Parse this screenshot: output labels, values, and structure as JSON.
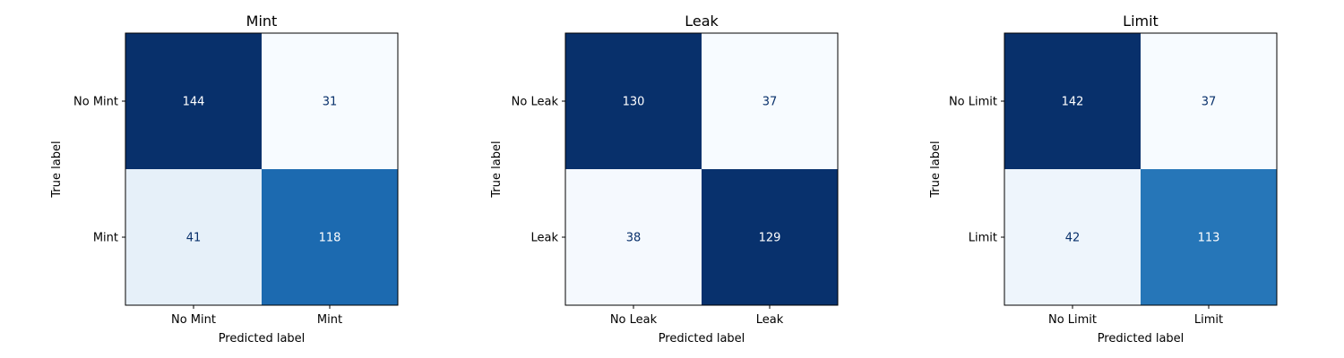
{
  "chart_data": [
    {
      "type": "heatmap",
      "title": "Mint",
      "xlabel": "Predicted label",
      "ylabel": "True label",
      "x_categories": [
        "No Mint",
        "Mint"
      ],
      "y_categories": [
        "No Mint",
        "Mint"
      ],
      "values": [
        [
          144,
          31
        ],
        [
          41,
          118
        ]
      ],
      "colormap": "Blues",
      "colors": [
        [
          "#08306b",
          "#f7fbff"
        ],
        [
          "#e6f0f9",
          "#1c6ab0"
        ]
      ]
    },
    {
      "type": "heatmap",
      "title": "Leak",
      "xlabel": "Predicted label",
      "ylabel": "True label",
      "x_categories": [
        "No Leak",
        "Leak"
      ],
      "y_categories": [
        "No Leak",
        "Leak"
      ],
      "values": [
        [
          130,
          37
        ],
        [
          38,
          129
        ]
      ],
      "colormap": "Blues",
      "colors": [
        [
          "#08306b",
          "#f7fbff"
        ],
        [
          "#f5f9fe",
          "#08316d"
        ]
      ]
    },
    {
      "type": "heatmap",
      "title": "Limit",
      "xlabel": "Predicted label",
      "ylabel": "True label",
      "x_categories": [
        "No Limit",
        "Limit"
      ],
      "y_categories": [
        "No Limit",
        "Limit"
      ],
      "values": [
        [
          142,
          37
        ],
        [
          42,
          113
        ]
      ],
      "colormap": "Blues",
      "colors": [
        [
          "#08306b",
          "#f7fbff"
        ],
        [
          "#eef5fc",
          "#2676b8"
        ]
      ]
    }
  ]
}
